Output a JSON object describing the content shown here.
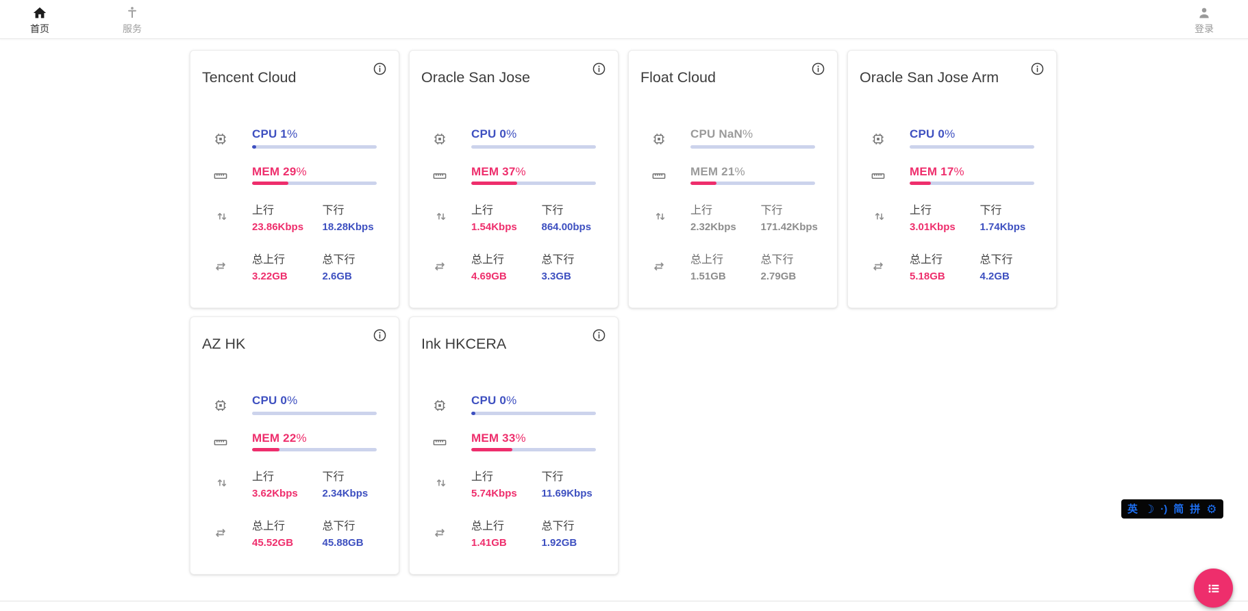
{
  "navbar": {
    "home_label": "首页",
    "services_label": "服务",
    "login_label": "登录"
  },
  "labels": {
    "up": "上行",
    "down": "下行",
    "total_up": "总上行",
    "total_down": "总下行",
    "pct": "%"
  },
  "colors": {
    "pink": "#ee2e6c",
    "indigo": "#3e50c0",
    "bar_track": "#ccd3ec",
    "muted_text": "#8d8d8d"
  },
  "servers": [
    {
      "name": "Tencent Cloud",
      "cpu_text": "CPU 1",
      "cpu_pct": 1,
      "cpu_dot": true,
      "mem_text": "MEM 29",
      "mem_pct": 29,
      "muted": false,
      "up_speed": "23.86Kbps",
      "down_speed": "18.28Kbps",
      "total_up": "3.22GB",
      "total_down": "2.6GB"
    },
    {
      "name": "Oracle San Jose",
      "cpu_text": "CPU 0",
      "cpu_pct": 0,
      "cpu_dot": false,
      "mem_text": "MEM 37",
      "mem_pct": 37,
      "muted": false,
      "up_speed": "1.54Kbps",
      "down_speed": "864.00bps",
      "total_up": "4.69GB",
      "total_down": "3.3GB"
    },
    {
      "name": "Float Cloud",
      "cpu_text": "CPU NaN",
      "cpu_pct": 0,
      "cpu_dot": false,
      "mem_text": "MEM 21",
      "mem_pct": 21,
      "muted": true,
      "up_speed": "2.32Kbps",
      "down_speed": "171.42Kbps",
      "total_up": "1.51GB",
      "total_down": "2.79GB"
    },
    {
      "name": "Oracle San Jose Arm",
      "cpu_text": "CPU 0",
      "cpu_pct": 0,
      "cpu_dot": false,
      "mem_text": "MEM 17",
      "mem_pct": 17,
      "muted": false,
      "up_speed": "3.01Kbps",
      "down_speed": "1.74Kbps",
      "total_up": "5.18GB",
      "total_down": "4.2GB"
    },
    {
      "name": "AZ HK",
      "cpu_text": "CPU 0",
      "cpu_pct": 0,
      "cpu_dot": false,
      "mem_text": "MEM 22",
      "mem_pct": 22,
      "muted": false,
      "up_speed": "3.62Kbps",
      "down_speed": "2.34Kbps",
      "total_up": "45.52GB",
      "total_down": "45.88GB"
    },
    {
      "name": "Ink HKCERA",
      "cpu_text": "CPU 0",
      "cpu_pct": 0,
      "cpu_dot": true,
      "mem_text": "MEM 33",
      "mem_pct": 33,
      "muted": false,
      "up_speed": "5.74Kbps",
      "down_speed": "11.69Kbps",
      "total_up": "1.41GB",
      "total_down": "1.92GB"
    }
  ],
  "ime_toolbar": {
    "items": [
      "英",
      "☽",
      "·)",
      "简",
      "拼",
      "⚙"
    ]
  }
}
